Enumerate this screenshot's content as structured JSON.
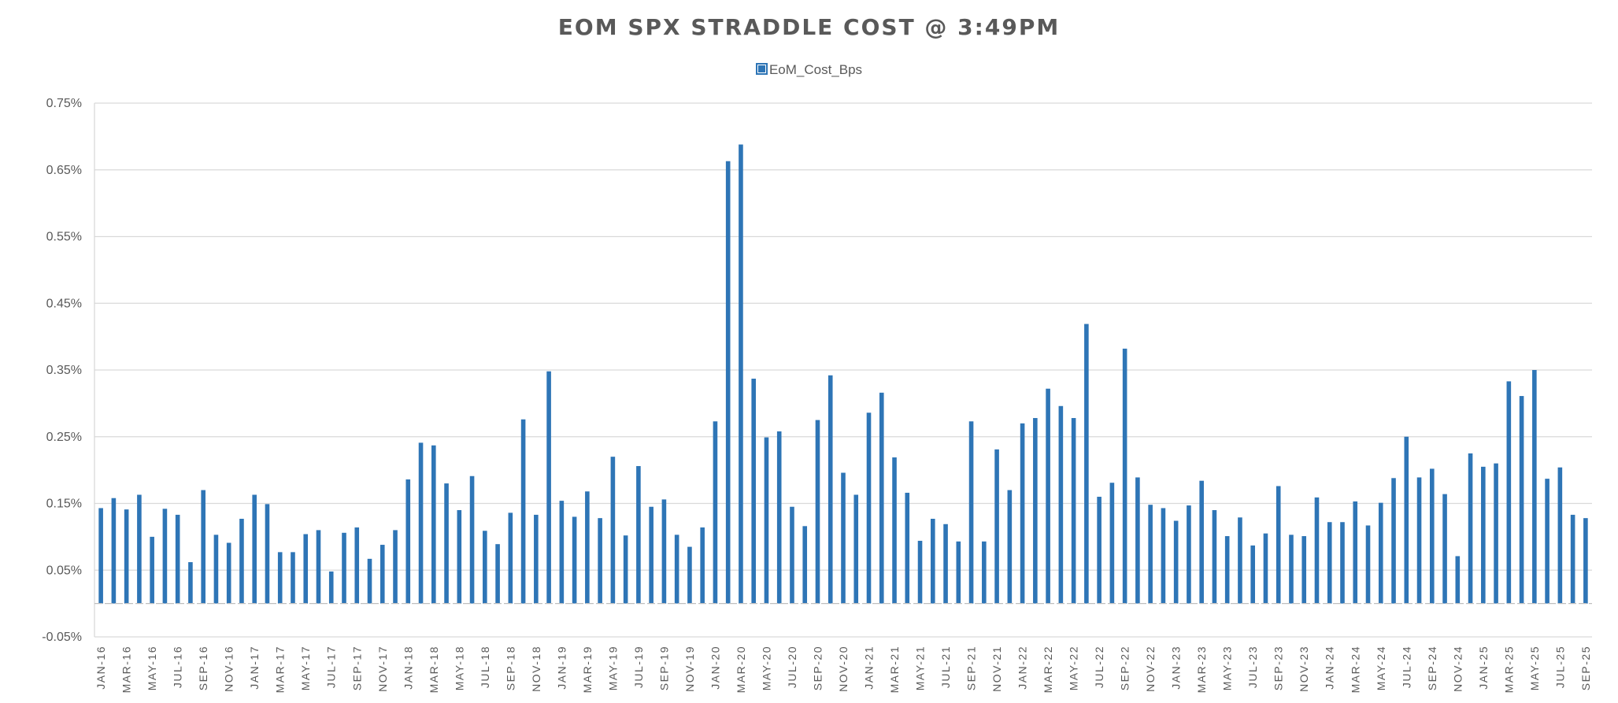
{
  "chart_data": {
    "type": "bar",
    "title": "EOM SPX STRADDLE COST @ 3:49PM",
    "legend": {
      "position": "top-center",
      "entries": [
        "EoM_Cost_Bps"
      ]
    },
    "xlabel": "",
    "ylabel": "",
    "ylim": [
      -0.05,
      0.75
    ],
    "yticks": [
      "0.75%",
      "0.65%",
      "0.55%",
      "0.45%",
      "0.35%",
      "0.25%",
      "0.15%",
      "0.05%",
      "-0.05%"
    ],
    "ytick_values": [
      0.75,
      0.65,
      0.55,
      0.45,
      0.35,
      0.25,
      0.15,
      0.05,
      -0.05
    ],
    "grid": true,
    "bar_color": "#2e75b6",
    "categories": [
      "JAN-16",
      "FEB-16",
      "MAR-16",
      "APR-16",
      "MAY-16",
      "JUN-16",
      "JUL-16",
      "AUG-16",
      "SEP-16",
      "OCT-16",
      "NOV-16",
      "DEC-16",
      "JAN-17",
      "FEB-17",
      "MAR-17",
      "APR-17",
      "MAY-17",
      "JUN-17",
      "JUL-17",
      "AUG-17",
      "SEP-17",
      "OCT-17",
      "NOV-17",
      "DEC-17",
      "JAN-18",
      "FEB-18",
      "MAR-18",
      "APR-18",
      "MAY-18",
      "JUN-18",
      "JUL-18",
      "AUG-18",
      "SEP-18",
      "OCT-18",
      "NOV-18",
      "DEC-18",
      "JAN-19",
      "FEB-19",
      "MAR-19",
      "APR-19",
      "MAY-19",
      "JUN-19",
      "JUL-19",
      "AUG-19",
      "SEP-19",
      "OCT-19",
      "NOV-19",
      "DEC-19",
      "JAN-20",
      "FEB-20",
      "MAR-20",
      "APR-20",
      "MAY-20",
      "JUN-20",
      "JUL-20",
      "AUG-20",
      "SEP-20",
      "OCT-20",
      "NOV-20",
      "DEC-20",
      "JAN-21",
      "FEB-21",
      "MAR-21",
      "APR-21",
      "MAY-21",
      "JUN-21",
      "JUL-21",
      "AUG-21",
      "SEP-21",
      "OCT-21",
      "NOV-21",
      "DEC-21",
      "JAN-22",
      "FEB-22",
      "MAR-22",
      "APR-22",
      "MAY-22",
      "JUN-22",
      "JUL-22",
      "AUG-22",
      "SEP-22",
      "OCT-22",
      "NOV-22",
      "DEC-22",
      "JAN-23",
      "FEB-23",
      "MAR-23",
      "APR-23",
      "MAY-23",
      "JUN-23",
      "JUL-23",
      "AUG-23",
      "SEP-23",
      "OCT-23",
      "NOV-23",
      "DEC-23",
      "JAN-24",
      "FEB-24",
      "MAR-24",
      "APR-24",
      "MAY-24",
      "JUN-24",
      "JUL-24",
      "AUG-24",
      "SEP-24",
      "OCT-24",
      "NOV-24",
      "DEC-24",
      "JAN-25",
      "FEB-25",
      "MAR-25",
      "APR-25",
      "MAY-25",
      "JUN-25",
      "JUL-25",
      "AUG-25",
      "SEP-25"
    ],
    "xtick_labels_shown": [
      "JAN-16",
      "MAR-16",
      "MAY-16",
      "JUL-16",
      "SEP-16",
      "NOV-16",
      "JAN-17",
      "MAR-17",
      "MAY-17",
      "JUL-17",
      "SEP-17",
      "NOV-17",
      "JAN-18",
      "MAR-18",
      "MAY-18",
      "JUL-18",
      "SEP-18",
      "NOV-18",
      "JAN-19",
      "MAR-19",
      "MAY-19",
      "JUL-19",
      "SEP-19",
      "NOV-19",
      "JAN-20",
      "MAR-20",
      "MAY-20",
      "JUL-20",
      "SEP-20",
      "NOV-20",
      "JAN-21",
      "MAR-21",
      "MAY-21",
      "JUL-21",
      "SEP-21",
      "NOV-21",
      "JAN-22",
      "MAR-22",
      "MAY-22",
      "JUL-22",
      "SEP-22",
      "NOV-22",
      "JAN-23",
      "MAR-23",
      "MAY-23",
      "JUL-23",
      "SEP-23",
      "NOV-23",
      "JAN-24",
      "MAR-24",
      "MAY-24",
      "JUL-24",
      "SEP-24",
      "NOV-24",
      "JAN-25",
      "MAR-25",
      "MAY-25",
      "JUL-25",
      "SEP-25"
    ],
    "series": [
      {
        "name": "EoM_Cost_Bps",
        "values": [
          0.143,
          0.158,
          0.141,
          0.163,
          0.1,
          0.142,
          0.133,
          0.062,
          0.17,
          0.103,
          0.091,
          0.127,
          0.163,
          0.149,
          0.077,
          0.077,
          0.104,
          0.11,
          0.048,
          0.106,
          0.114,
          0.067,
          0.088,
          0.11,
          0.186,
          0.241,
          0.237,
          0.18,
          0.14,
          0.191,
          0.109,
          0.089,
          0.136,
          0.276,
          0.133,
          0.348,
          0.154,
          0.13,
          0.168,
          0.128,
          0.22,
          0.102,
          0.206,
          0.145,
          0.156,
          0.103,
          0.085,
          0.114,
          0.273,
          0.663,
          0.688,
          0.337,
          0.249,
          0.258,
          0.145,
          0.116,
          0.275,
          0.342,
          0.196,
          0.163,
          0.286,
          0.316,
          0.219,
          0.166,
          0.094,
          0.127,
          0.119,
          0.093,
          0.273,
          0.093,
          0.231,
          0.17,
          0.27,
          0.278,
          0.322,
          0.296,
          0.278,
          0.419,
          0.16,
          0.181,
          0.382,
          0.189,
          0.148,
          0.143,
          0.124,
          0.147,
          0.184,
          0.14,
          0.101,
          0.129,
          0.087,
          0.105,
          0.176,
          0.103,
          0.101,
          0.159,
          0.122,
          0.122,
          0.153,
          0.117,
          0.151,
          0.188,
          0.25,
          0.189,
          0.202,
          0.164,
          0.071,
          0.225,
          0.205,
          0.21,
          0.333,
          0.311,
          0.35,
          0.187,
          0.204,
          0.133,
          0.128
        ]
      }
    ]
  }
}
